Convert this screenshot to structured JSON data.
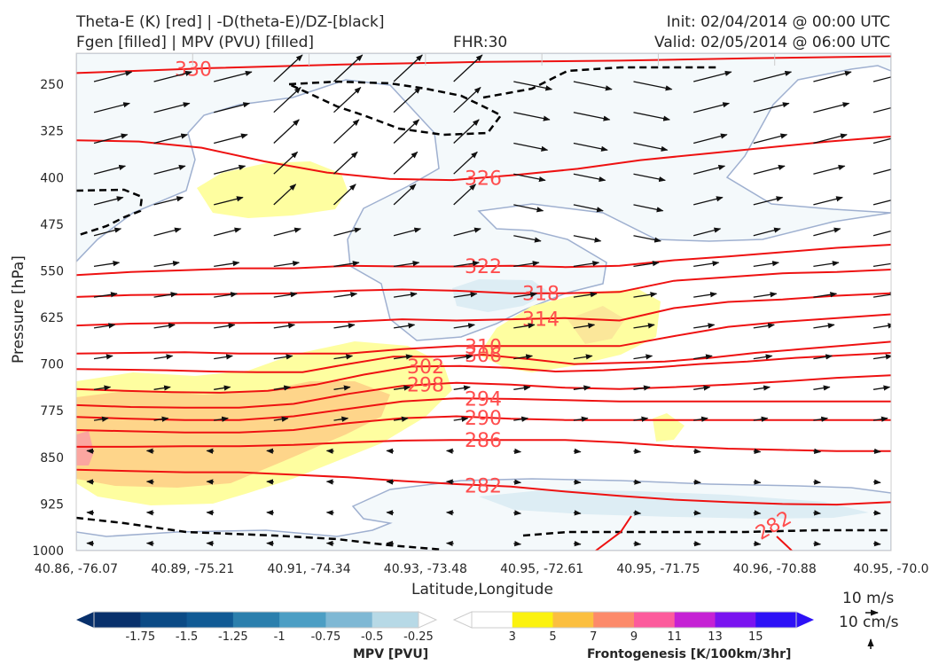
{
  "header": {
    "title_left_line1": "Theta-E (K) [red] | -D(theta-E)/DZ-[black]",
    "title_left_line2": "Fgen [filled] | MPV (PVU) [filled]",
    "title_center": "FHR:30",
    "init": "Init: 02/04/2014 @ 00:00 UTC",
    "valid": "Valid: 02/05/2014 @ 06:00 UTC"
  },
  "vector_key": {
    "label1": "10 m/s",
    "label2": "10 cm/s"
  },
  "chart_data": {
    "type": "cross-section",
    "xlabel": "Latitude,Longitude",
    "ylabel": "Pressure [hPa]",
    "x_ticks": [
      "40.86, -76.07",
      "40.89, -75.21",
      "40.91, -74.34",
      "40.93, -73.48",
      "40.95, -72.61",
      "40.95, -71.75",
      "40.96, -70.88",
      "40.95, -70.0"
    ],
    "y_ticks": [
      250,
      325,
      400,
      475,
      550,
      625,
      700,
      775,
      850,
      925,
      1000
    ],
    "ylim": [
      1000,
      200
    ],
    "theta_e_contours": [
      {
        "value": 330,
        "label": "330",
        "p": [
          232,
          224,
          218,
          214,
          212,
          208,
          205
        ]
      },
      {
        "value": 326,
        "label": "326",
        "p": [
          340,
          342,
          352,
          374,
          392,
          402,
          404,
          396,
          386,
          372,
          362,
          352,
          342,
          334
        ]
      },
      {
        "value": 322,
        "label": "322",
        "p": [
          557,
          552,
          549,
          546,
          546,
          542,
          543,
          543,
          542,
          544,
          542,
          533,
          527,
          520,
          513,
          508
        ]
      },
      {
        "value": 318,
        "label": "318",
        "p": [
          592,
          589,
          588,
          587,
          586,
          582,
          580,
          582,
          586,
          586,
          584,
          566,
          560,
          554,
          552,
          548
        ]
      },
      {
        "value": 314,
        "label": "314",
        "p": [
          638,
          635,
          634,
          634,
          633,
          632,
          628,
          630,
          628,
          626,
          630,
          610,
          600,
          596,
          590,
          586
        ]
      },
      {
        "value": 310,
        "label": "310",
        "p": [
          683,
          682,
          681,
          683,
          683,
          683,
          676,
          671,
          671,
          671,
          671,
          655,
          640,
          632,
          626,
          620
        ]
      },
      {
        "value": 306,
        "label": "306",
        "p": [
          708,
          709,
          710,
          712,
          713,
          713,
          700,
          688,
          688,
          685,
          692,
          700,
          698,
          696,
          690,
          682,
          676,
          670,
          664
        ]
      },
      {
        "value": 302,
        "label": "302",
        "p": [
          740,
          743,
          745,
          746,
          743,
          733,
          717,
          704,
          703,
          706,
          712,
          710,
          706,
          700,
          696,
          690,
          686,
          682
        ]
      },
      {
        "value": 298,
        "label": "298",
        "p": [
          766,
          769,
          770,
          770,
          764,
          748,
          735,
          730,
          733,
          738,
          740,
          737,
          733,
          728,
          722,
          718
        ]
      },
      {
        "value": 294,
        "label": "294",
        "p": [
          785,
          788,
          790,
          790,
          784,
          772,
          760,
          755,
          756,
          758,
          760,
          760,
          760,
          760,
          760,
          760
        ]
      },
      {
        "value": 290,
        "label": "290",
        "p": [
          806,
          808,
          810,
          810,
          806,
          795,
          787,
          784,
          788,
          790,
          790,
          790,
          790,
          790,
          790,
          790
        ]
      },
      {
        "value": 286,
        "label": "286",
        "p": [
          833,
          833,
          832,
          832,
          830,
          826,
          823,
          822,
          822,
          822,
          826,
          832,
          836,
          838,
          840,
          840
        ]
      },
      {
        "value": 282,
        "label": "282",
        "p": [
          870,
          872,
          874,
          874,
          878,
          882,
          888,
          893,
          897,
          905,
          912,
          918,
          922,
          925,
          926,
          922
        ]
      }
    ],
    "mpv_levels": [
      -1.75,
      -1.5,
      -1.25,
      -1.0,
      -0.75,
      -0.5,
      -0.25
    ],
    "mpv_colors": [
      "#08306b",
      "#0b4a85",
      "#105a94",
      "#2b7fad",
      "#4c9ec4",
      "#7fb8d4",
      "#b7d9e6",
      "#ffffff"
    ],
    "mpv_label": "MPV [PVU]",
    "fgen_levels": [
      3,
      5,
      7,
      9,
      11,
      13,
      15
    ],
    "fgen_colors": [
      "#ffffff",
      "#fbf20f",
      "#fbbf40",
      "#fc8a6a",
      "#fc5b9c",
      "#c521d4",
      "#7a13f0",
      "#2d11f6"
    ],
    "fgen_label": "Frontogenesis [K/100km/3hr]"
  }
}
